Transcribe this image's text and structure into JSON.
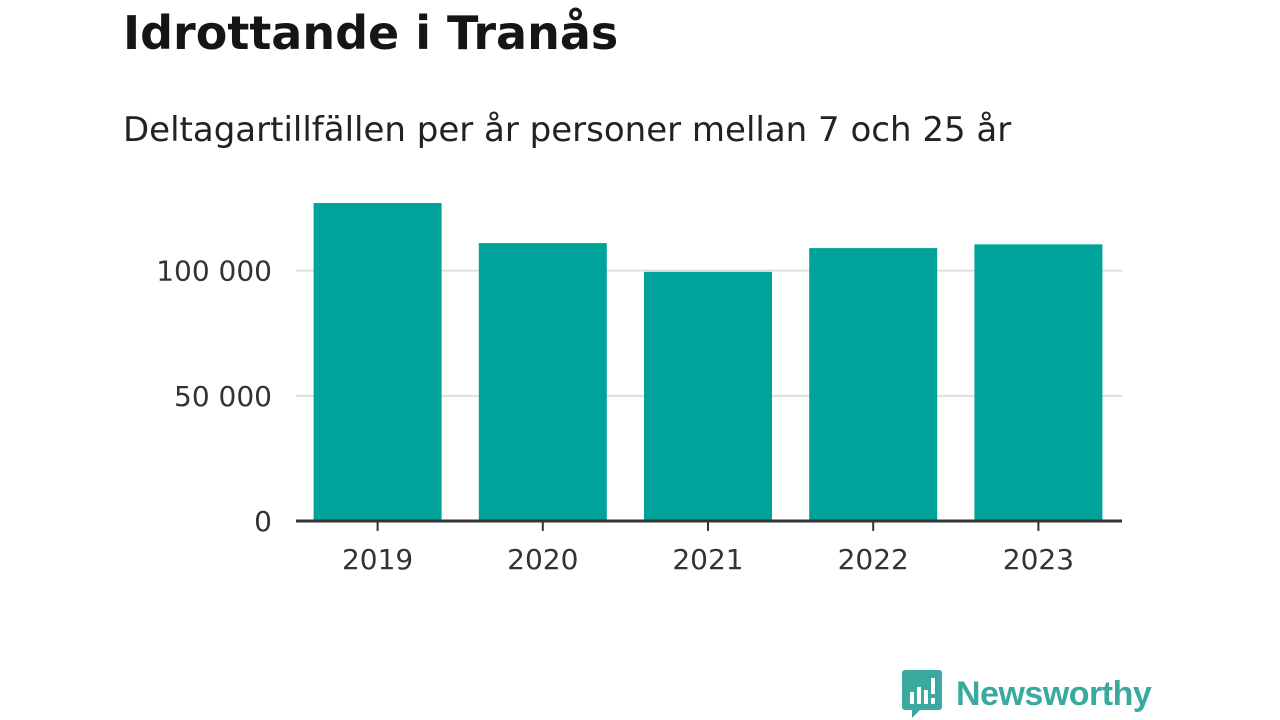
{
  "header": {
    "title": "Idrottande i Tranås",
    "subtitle": "Deltagartillfällen per år personer mellan 7 och 25 år"
  },
  "chart_data": {
    "type": "bar",
    "categories": [
      "2019",
      "2020",
      "2021",
      "2022",
      "2023"
    ],
    "values": [
      127000,
      111000,
      99500,
      109000,
      110500
    ],
    "title": "Idrottande i Tranås",
    "subtitle": "Deltagartillfällen per år personer mellan 7 och 25 år",
    "xlabel": "",
    "ylabel": "",
    "ylim": [
      0,
      135000
    ],
    "yticks": [
      0,
      50000,
      100000
    ],
    "ytick_labels": [
      "0",
      "50 000",
      "100 000"
    ],
    "grid": true,
    "legend": "none",
    "bar_color": "#00a39a",
    "grid_color": "#dddddd",
    "axis_color": "#333333"
  },
  "branding": {
    "logo_text": "Newsworthy",
    "logo_icon": "bar-chart-speech-bubble-icon",
    "logo_color": "#3aa99f"
  }
}
